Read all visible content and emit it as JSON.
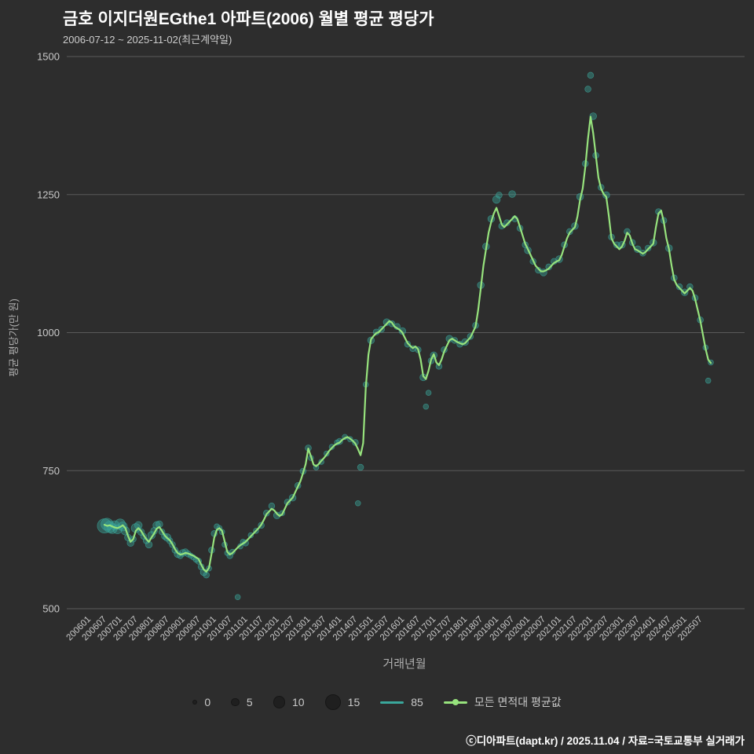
{
  "header": {
    "title": "금호 이지더원EGthe1 아파트(2006) 월별 평균 평당가",
    "subtitle": "2006-07-12 ~ 2025-11-02(최근계약일)"
  },
  "axes": {
    "y_label": "평균 평당가(만 원)",
    "x_label": "거래년월"
  },
  "footer": {
    "credit": "ⓒ디아파트(dapt.kr) / 2025.11.04 / 자료=국토교통부 실거래가"
  },
  "colors": {
    "background": "#2d2d2d",
    "grid": "#5a5a5a",
    "avg_line": "#97e37d",
    "scatter": "#3aa79b",
    "legend_bubble": "#1f1f1f",
    "title_text": "#ffffff",
    "tick_text": "#c9c9c9"
  },
  "legend": {
    "size_labels": [
      "0",
      "5",
      "10",
      "15"
    ],
    "sizes": [
      0,
      5,
      10,
      15
    ],
    "series": [
      {
        "label": "85",
        "color": "#3aa79b",
        "dot": false
      },
      {
        "label": "모든 면적대 평균값",
        "color": "#97e37d",
        "dot": true
      }
    ]
  },
  "chart_data": {
    "type": "scatter",
    "title": "금호 이지더원EGthe1 아파트(2006) 월별 평균 평당가",
    "subtitle": "2006-07-12 ~ 2025-11-02(최근계약일)",
    "xlabel": "거래년월",
    "ylabel": "평균 평당가(만 원)",
    "ylim": [
      500,
      1500
    ],
    "grid": "horizontal",
    "legend_position": "bottom",
    "y_ticks": [
      500,
      750,
      1000,
      1250,
      1500
    ],
    "x_base": "200601",
    "x_tick_labels": [
      "200601",
      "200607",
      "200701",
      "200707",
      "200801",
      "200807",
      "200901",
      "200907",
      "201001",
      "201007",
      "201101",
      "201107",
      "201201",
      "201207",
      "201301",
      "201307",
      "201401",
      "201407",
      "201501",
      "201507",
      "201601",
      "201607",
      "201701",
      "201707",
      "201801",
      "201807",
      "201901",
      "201907",
      "202001",
      "202007",
      "202101",
      "202107",
      "202201",
      "202207",
      "202301",
      "202307",
      "202401",
      "202407",
      "202501",
      "202507"
    ],
    "avg_line": {
      "name": "모든 면적대 평균값",
      "start": "200607",
      "values": [
        652,
        650,
        651,
        649,
        647,
        646,
        648,
        651,
        646,
        632,
        621,
        626,
        641,
        646,
        641,
        633,
        626,
        621,
        629,
        636,
        645,
        648,
        641,
        633,
        628,
        624,
        617,
        608,
        601,
        598,
        599,
        601,
        600,
        598,
        596,
        593,
        590,
        580,
        571,
        567,
        574,
        600,
        628,
        643,
        646,
        641,
        622,
        603,
        598,
        601,
        606,
        611,
        615,
        618,
        621,
        626,
        631,
        636,
        641,
        646,
        652,
        661,
        671,
        676,
        681,
        678,
        672,
        668,
        671,
        681,
        691,
        696,
        701,
        711,
        721,
        731,
        746,
        762,
        790,
        776,
        761,
        758,
        762,
        768,
        773,
        779,
        786,
        791,
        796,
        799,
        801,
        806,
        809,
        811,
        808,
        804,
        799,
        789,
        778,
        800,
        900,
        960,
        988,
        994,
        999,
        1001,
        1006,
        1011,
        1016,
        1021,
        1018,
        1011,
        1008,
        1005,
        1000,
        990,
        981,
        976,
        972,
        975,
        970,
        951,
        921,
        916,
        931,
        951,
        961,
        946,
        941,
        951,
        966,
        976,
        986,
        989,
        986,
        983,
        981,
        979,
        981,
        986,
        991,
        1001,
        1011,
        1041,
        1081,
        1121,
        1151,
        1181,
        1201,
        1216,
        1226,
        1211,
        1196,
        1191,
        1196,
        1201,
        1206,
        1211,
        1206,
        1191,
        1176,
        1161,
        1151,
        1141,
        1131,
        1121,
        1116,
        1111,
        1111,
        1113,
        1116,
        1121,
        1126,
        1129,
        1131,
        1141,
        1156,
        1171,
        1181,
        1186,
        1191,
        1211,
        1241,
        1261,
        1301,
        1351,
        1391,
        1361,
        1321,
        1281,
        1261,
        1251,
        1246,
        1211,
        1171,
        1161,
        1156,
        1151,
        1156,
        1166,
        1181,
        1176,
        1161,
        1151,
        1149,
        1146,
        1143,
        1146,
        1151,
        1156,
        1161,
        1191,
        1216,
        1221,
        1201,
        1171,
        1151,
        1121,
        1096,
        1086,
        1081,
        1076,
        1071,
        1076,
        1081,
        1076,
        1061,
        1041,
        1021,
        996,
        971,
        951,
        945
      ]
    },
    "scatter_85": {
      "name": "85",
      "point_format": [
        "yyyymm",
        "value_manwon",
        "count"
      ],
      "points": [
        [
          "200607",
          650,
          15
        ],
        [
          "200608",
          653,
          12
        ],
        [
          "200609",
          648,
          11
        ],
        [
          "200610",
          645,
          9
        ],
        [
          "200611",
          651,
          8
        ],
        [
          "200612",
          644,
          8
        ],
        [
          "200701",
          653,
          10
        ],
        [
          "200702",
          649,
          8
        ],
        [
          "200703",
          641,
          7
        ],
        [
          "200704",
          629,
          5
        ],
        [
          "200705",
          619,
          5
        ],
        [
          "200706",
          626,
          4
        ],
        [
          "200707",
          646,
          8
        ],
        [
          "200708",
          651,
          6
        ],
        [
          "200709",
          639,
          5
        ],
        [
          "200710",
          631,
          4
        ],
        [
          "200711",
          623,
          4
        ],
        [
          "200712",
          616,
          5
        ],
        [
          "200801",
          633,
          6
        ],
        [
          "200802",
          641,
          5
        ],
        [
          "200803",
          651,
          6
        ],
        [
          "200804",
          653,
          5
        ],
        [
          "200805",
          639,
          4
        ],
        [
          "200806",
          631,
          4
        ],
        [
          "200807",
          629,
          6
        ],
        [
          "200808",
          623,
          4
        ],
        [
          "200809",
          616,
          4
        ],
        [
          "200810",
          606,
          4
        ],
        [
          "200811",
          599,
          5
        ],
        [
          "200812",
          596,
          4
        ],
        [
          "200901",
          601,
          5
        ],
        [
          "200902",
          603,
          4
        ],
        [
          "200903",
          599,
          4
        ],
        [
          "200904",
          596,
          3
        ],
        [
          "200905",
          593,
          3
        ],
        [
          "200906",
          589,
          3
        ],
        [
          "200907",
          586,
          4
        ],
        [
          "200908",
          576,
          4
        ],
        [
          "200909",
          566,
          5
        ],
        [
          "200910",
          561,
          4
        ],
        [
          "200911",
          573,
          3
        ],
        [
          "200912",
          606,
          4
        ],
        [
          "201001",
          636,
          4
        ],
        [
          "201002",
          649,
          3
        ],
        [
          "201003",
          646,
          3
        ],
        [
          "201004",
          639,
          3
        ],
        [
          "201005",
          616,
          3
        ],
        [
          "201006",
          601,
          3
        ],
        [
          "201007",
          596,
          4
        ],
        [
          "201008",
          603,
          3
        ],
        [
          "201010",
          521,
          3
        ],
        [
          "201011",
          613,
          3
        ],
        [
          "201012",
          621,
          3
        ],
        [
          "201101",
          619,
          4
        ],
        [
          "201103",
          633,
          3
        ],
        [
          "201105",
          641,
          3
        ],
        [
          "201107",
          651,
          4
        ],
        [
          "201109",
          673,
          4
        ],
        [
          "201111",
          686,
          4
        ],
        [
          "201201",
          669,
          5
        ],
        [
          "201203",
          673,
          3
        ],
        [
          "201205",
          693,
          4
        ],
        [
          "201207",
          701,
          5
        ],
        [
          "201209",
          723,
          4
        ],
        [
          "201211",
          749,
          4
        ],
        [
          "201301",
          791,
          4
        ],
        [
          "201302",
          773,
          3
        ],
        [
          "201304",
          756,
          3
        ],
        [
          "201306",
          766,
          3
        ],
        [
          "201308",
          781,
          3
        ],
        [
          "201310",
          793,
          3
        ],
        [
          "201312",
          801,
          3
        ],
        [
          "201401",
          803,
          4
        ],
        [
          "201403",
          811,
          3
        ],
        [
          "201405",
          807,
          3
        ],
        [
          "201407",
          801,
          4
        ],
        [
          "201408",
          691,
          3
        ],
        [
          "201409",
          756,
          4
        ],
        [
          "201411",
          906,
          3
        ],
        [
          "201501",
          986,
          5
        ],
        [
          "201503",
          1001,
          4
        ],
        [
          "201505",
          1006,
          4
        ],
        [
          "201507",
          1019,
          5
        ],
        [
          "201509",
          1016,
          4
        ],
        [
          "201511",
          1011,
          4
        ],
        [
          "201601",
          1003,
          5
        ],
        [
          "201603",
          979,
          4
        ],
        [
          "201605",
          971,
          4
        ],
        [
          "201607",
          969,
          4
        ],
        [
          "201609",
          919,
          5
        ],
        [
          "201610",
          866,
          3
        ],
        [
          "201611",
          891,
          3
        ],
        [
          "201612",
          949,
          4
        ],
        [
          "201701",
          959,
          5
        ],
        [
          "201703",
          939,
          4
        ],
        [
          "201705",
          969,
          4
        ],
        [
          "201707",
          989,
          5
        ],
        [
          "201709",
          986,
          4
        ],
        [
          "201711",
          979,
          4
        ],
        [
          "201801",
          983,
          5
        ],
        [
          "201803",
          993,
          4
        ],
        [
          "201805",
          1013,
          4
        ],
        [
          "201807",
          1086,
          5
        ],
        [
          "201809",
          1156,
          5
        ],
        [
          "201811",
          1206,
          5
        ],
        [
          "201901",
          1241,
          6
        ],
        [
          "201902",
          1249,
          4
        ],
        [
          "201903",
          1193,
          4
        ],
        [
          "201905",
          1199,
          4
        ],
        [
          "201907",
          1251,
          5
        ],
        [
          "201908",
          1206,
          4
        ],
        [
          "201910",
          1189,
          4
        ],
        [
          "201912",
          1159,
          4
        ],
        [
          "202001",
          1149,
          5
        ],
        [
          "202003",
          1129,
          4
        ],
        [
          "202005",
          1113,
          4
        ],
        [
          "202007",
          1109,
          5
        ],
        [
          "202009",
          1119,
          4
        ],
        [
          "202011",
          1129,
          4
        ],
        [
          "202101",
          1133,
          5
        ],
        [
          "202103",
          1159,
          4
        ],
        [
          "202105",
          1183,
          4
        ],
        [
          "202107",
          1193,
          5
        ],
        [
          "202109",
          1246,
          5
        ],
        [
          "202111",
          1306,
          4
        ],
        [
          "202112",
          1441,
          4
        ],
        [
          "202201",
          1466,
          4
        ],
        [
          "202202",
          1392,
          5
        ],
        [
          "202203",
          1321,
          4
        ],
        [
          "202205",
          1263,
          4
        ],
        [
          "202207",
          1249,
          5
        ],
        [
          "202209",
          1173,
          4
        ],
        [
          "202211",
          1159,
          4
        ],
        [
          "202301",
          1159,
          5
        ],
        [
          "202303",
          1183,
          4
        ],
        [
          "202305",
          1163,
          4
        ],
        [
          "202307",
          1151,
          5
        ],
        [
          "202309",
          1144,
          4
        ],
        [
          "202311",
          1153,
          4
        ],
        [
          "202401",
          1163,
          5
        ],
        [
          "202403",
          1219,
          4
        ],
        [
          "202405",
          1203,
          4
        ],
        [
          "202407",
          1153,
          5
        ],
        [
          "202409",
          1099,
          4
        ],
        [
          "202411",
          1083,
          4
        ],
        [
          "202501",
          1073,
          5
        ],
        [
          "202503",
          1083,
          4
        ],
        [
          "202505",
          1063,
          4
        ],
        [
          "202507",
          1023,
          4
        ],
        [
          "202509",
          973,
          3
        ],
        [
          "202510",
          913,
          3
        ],
        [
          "202511",
          946,
          3
        ]
      ]
    }
  }
}
